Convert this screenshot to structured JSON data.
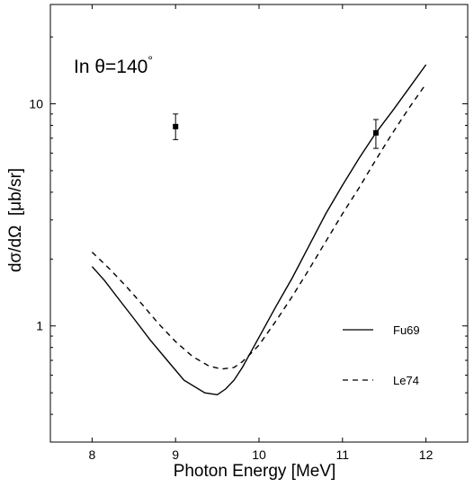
{
  "chart_data": {
    "type": "line",
    "title": "",
    "annotation": {
      "prefix": "In ",
      "theta": "θ",
      "value": "=140",
      "degree": "°"
    },
    "xlabel": "Photon Energy [MeV]",
    "ylabel": "dσ/dΩ  [μb/sr]",
    "xlim": [
      7.5,
      12.5
    ],
    "ylim": [
      0.3,
      28
    ],
    "yscale": "log",
    "grid": false,
    "legend_position": "bottom-right",
    "x_ticks": [
      8,
      9,
      10,
      11,
      12
    ],
    "x_tick_labels": [
      "8",
      "9",
      "10",
      "11",
      "12"
    ],
    "y_major_ticks": [
      1,
      10
    ],
    "y_tick_labels": [
      "1",
      "10"
    ],
    "series": [
      {
        "name": "Fu69",
        "style": "solid",
        "color": "#000000",
        "x": [
          8.0,
          8.15,
          8.3,
          8.5,
          8.7,
          8.9,
          9.1,
          9.35,
          9.5,
          9.6,
          9.7,
          9.8,
          9.9,
          10.0,
          10.2,
          10.4,
          10.6,
          10.8,
          11.0,
          11.2,
          11.4,
          11.6,
          11.8,
          12.0
        ],
        "y": [
          1.85,
          1.6,
          1.35,
          1.08,
          0.86,
          0.7,
          0.57,
          0.5,
          0.49,
          0.52,
          0.57,
          0.65,
          0.76,
          0.89,
          1.22,
          1.65,
          2.3,
          3.2,
          4.3,
          5.7,
          7.4,
          9.3,
          11.8,
          15.0
        ]
      },
      {
        "name": "Le74",
        "style": "dashed",
        "color": "#000000",
        "x": [
          8.0,
          8.2,
          8.4,
          8.6,
          8.8,
          9.0,
          9.2,
          9.4,
          9.55,
          9.7,
          9.8,
          9.9,
          10.0,
          10.2,
          10.4,
          10.6,
          10.8,
          11.0,
          11.2,
          11.4,
          11.6,
          11.8,
          12.0
        ],
        "y": [
          2.15,
          1.82,
          1.52,
          1.25,
          1.02,
          0.85,
          0.73,
          0.66,
          0.64,
          0.65,
          0.69,
          0.75,
          0.82,
          1.05,
          1.36,
          1.8,
          2.4,
          3.2,
          4.2,
          5.6,
          7.4,
          9.6,
          12.3
        ]
      },
      {
        "name": "",
        "type": "scatter",
        "marker": "square",
        "color": "#000000",
        "x": [
          9.0,
          11.4
        ],
        "y": [
          7.9,
          7.4
        ],
        "y_lower": [
          6.9,
          6.3
        ],
        "y_upper": [
          9.0,
          8.5
        ]
      }
    ]
  }
}
